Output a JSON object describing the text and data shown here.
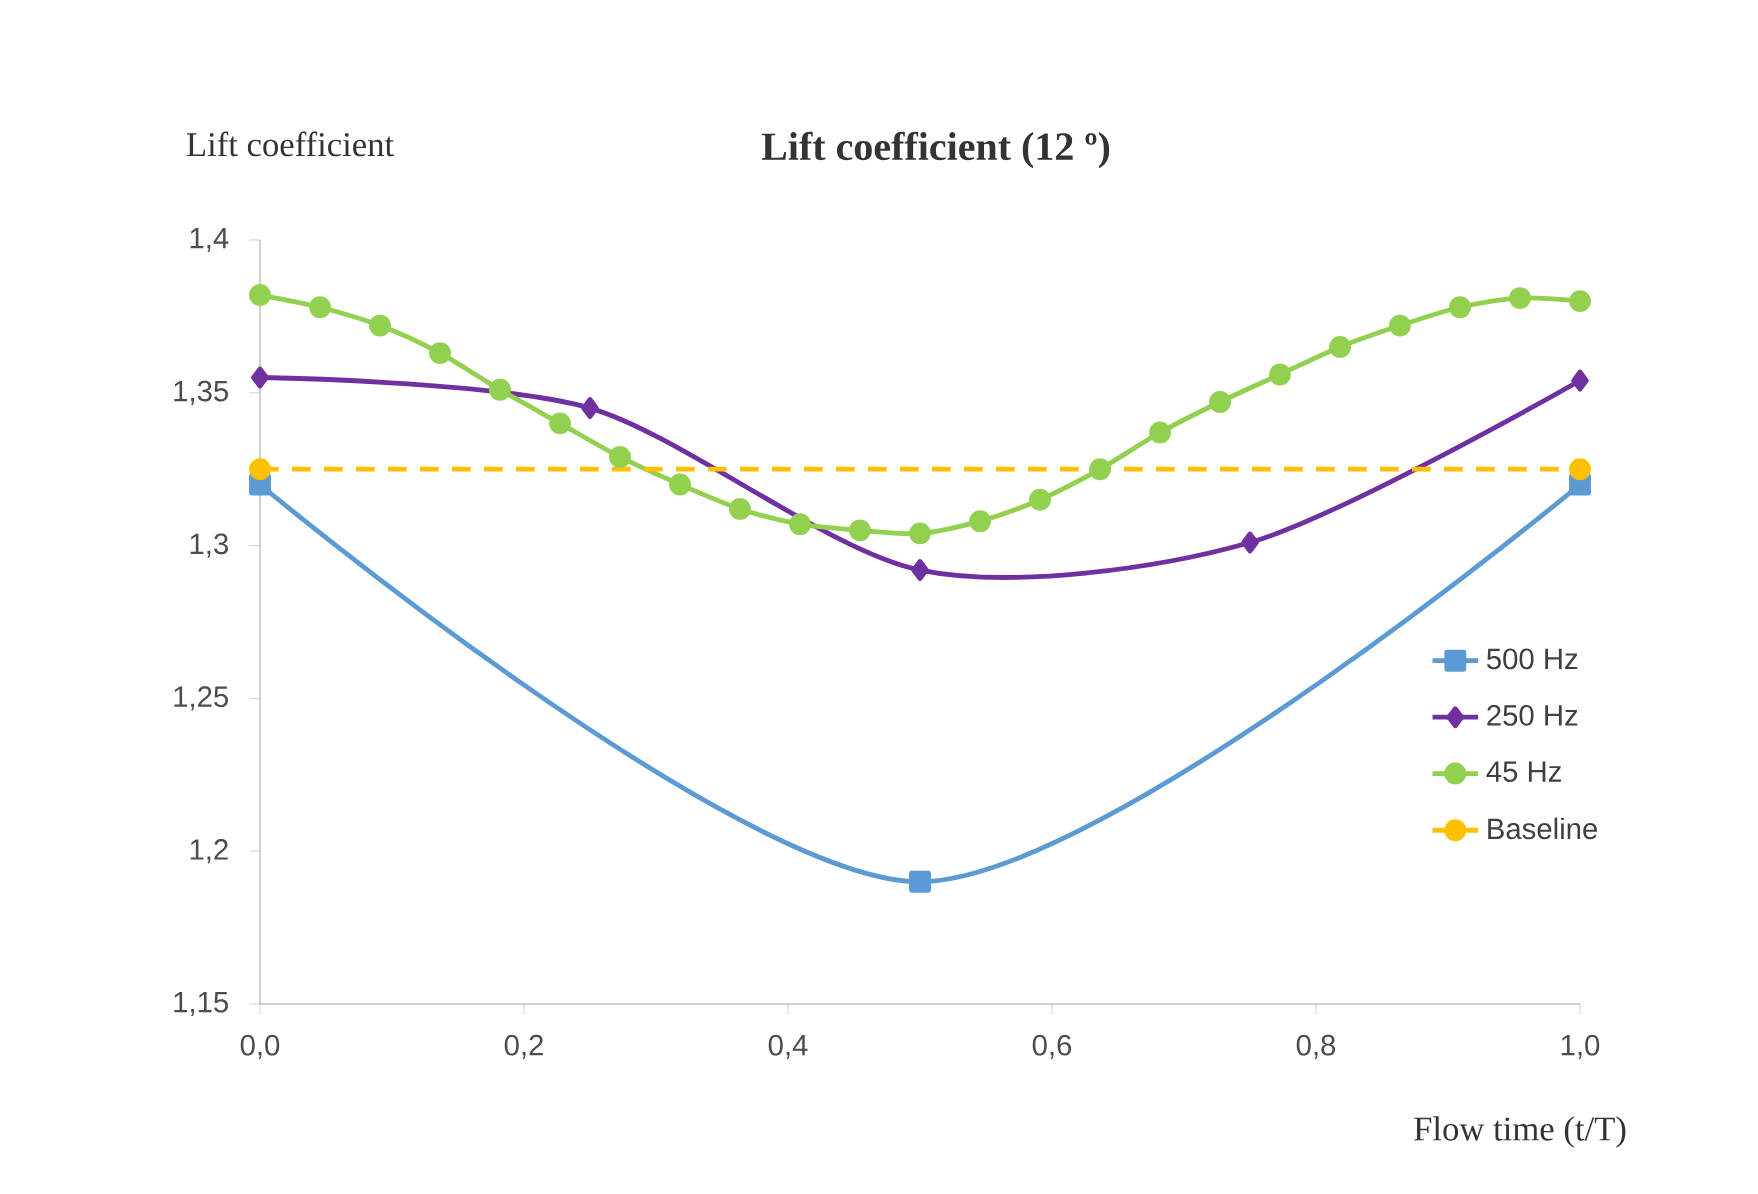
{
  "chart_data": {
    "type": "line",
    "title": "Lift coefficient (12 º)",
    "xlabel": "Flow time (t/T)",
    "ylabel": "Lift coefficient",
    "xlim": [
      0,
      1
    ],
    "ylim": [
      1.15,
      1.4
    ],
    "xticks": [
      {
        "value": 0,
        "label": "0,0"
      },
      {
        "value": 0.2,
        "label": "0,2"
      },
      {
        "value": 0.4,
        "label": "0,4"
      },
      {
        "value": 0.6,
        "label": "0,6"
      },
      {
        "value": 0.8,
        "label": "0,8"
      },
      {
        "value": 1,
        "label": "1,0"
      }
    ],
    "yticks": [
      {
        "value": 1.15,
        "label": "1,15"
      },
      {
        "value": 1.2,
        "label": "1,2"
      },
      {
        "value": 1.25,
        "label": "1,25"
      },
      {
        "value": 1.3,
        "label": "1,3"
      },
      {
        "value": 1.35,
        "label": "1,35"
      },
      {
        "value": 1.4,
        "label": "1,4"
      }
    ],
    "legend": "right",
    "grid": false,
    "series": [
      {
        "name": "500 Hz",
        "color": "#5b9bd5",
        "marker": "square",
        "x": [
          0,
          0.5,
          1
        ],
        "values": [
          1.32,
          1.19,
          1.32
        ]
      },
      {
        "name": "250 Hz",
        "color": "#7030a0",
        "marker": "diamond",
        "x": [
          0,
          0.25,
          0.5,
          0.75,
          1
        ],
        "values": [
          1.355,
          1.345,
          1.292,
          1.301,
          1.354
        ]
      },
      {
        "name": "45 Hz",
        "color": "#92d050",
        "marker": "circle",
        "x": [
          0,
          0.0455,
          0.0909,
          0.1364,
          0.1818,
          0.2273,
          0.2727,
          0.3182,
          0.3636,
          0.4091,
          0.4545,
          0.5,
          0.5455,
          0.5909,
          0.6364,
          0.6818,
          0.7273,
          0.7727,
          0.8182,
          0.8636,
          0.9091,
          0.9545,
          1
        ],
        "values": [
          1.382,
          1.378,
          1.372,
          1.363,
          1.351,
          1.34,
          1.329,
          1.32,
          1.312,
          1.307,
          1.305,
          1.304,
          1.308,
          1.315,
          1.325,
          1.337,
          1.347,
          1.356,
          1.365,
          1.372,
          1.378,
          1.381,
          1.38
        ]
      },
      {
        "name": "Baseline",
        "color": "#ffc000",
        "marker": "circle",
        "line_style": "dashed",
        "x": [
          0,
          1
        ],
        "values": [
          1.325,
          1.325
        ]
      }
    ]
  }
}
